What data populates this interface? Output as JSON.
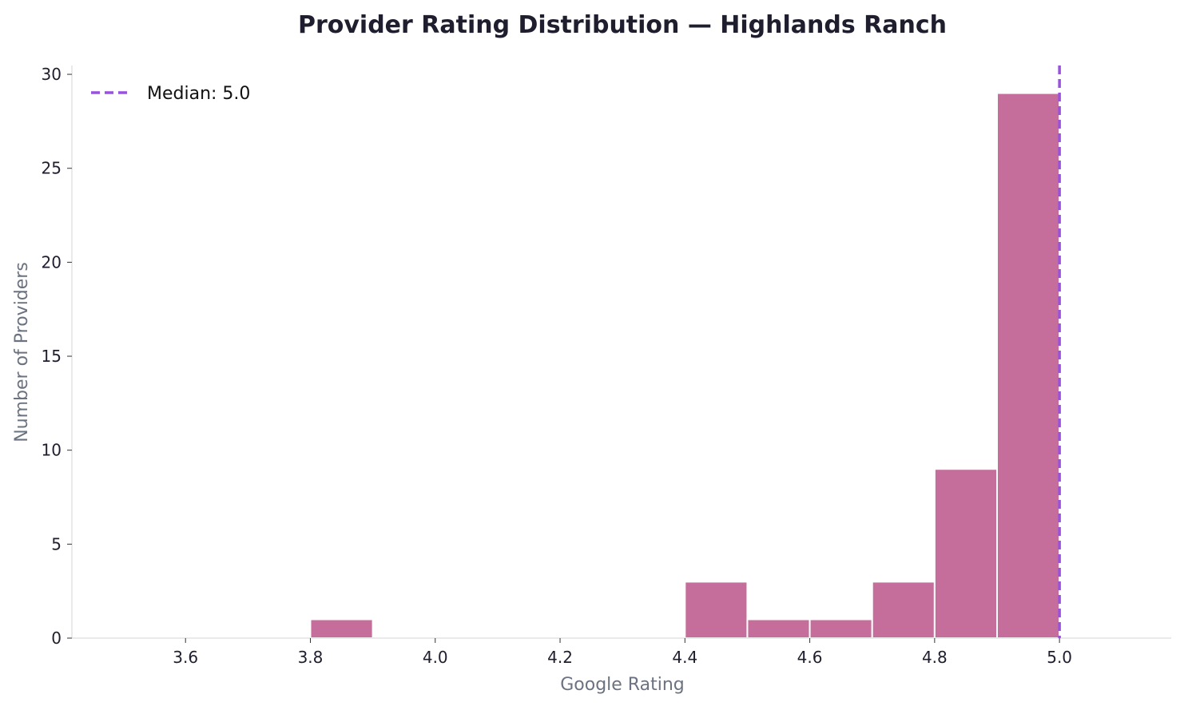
{
  "chart_data": {
    "type": "bar",
    "title": "Provider Rating Distribution — Highlands Ranch",
    "xlabel": "Google Rating",
    "ylabel": "Number of Providers",
    "xlim": [
      3.418,
      5.179
    ],
    "ylim": [
      0,
      30.47
    ],
    "xticks": [
      3.6,
      3.8,
      4.0,
      4.2,
      4.4,
      4.6,
      4.8,
      5.0
    ],
    "xtick_labels": [
      "3.6",
      "3.8",
      "4.0",
      "4.2",
      "4.4",
      "4.6",
      "4.8",
      "5.0"
    ],
    "yticks": [
      0,
      5,
      10,
      15,
      20,
      25,
      30
    ],
    "ytick_labels": [
      "0",
      "5",
      "10",
      "15",
      "20",
      "25",
      "30"
    ],
    "bins": [
      {
        "start": 3.8,
        "end": 3.9,
        "count": 1
      },
      {
        "start": 4.4,
        "end": 4.5,
        "count": 3
      },
      {
        "start": 4.5,
        "end": 4.6,
        "count": 1
      },
      {
        "start": 4.6,
        "end": 4.7,
        "count": 1
      },
      {
        "start": 4.7,
        "end": 4.8,
        "count": 3
      },
      {
        "start": 4.8,
        "end": 4.9,
        "count": 9
      },
      {
        "start": 4.9,
        "end": 5.0,
        "count": 29
      }
    ],
    "median": 5.0,
    "legend": {
      "label": "Median: 5.0",
      "placement": "top-left"
    },
    "grid": false,
    "colors": {
      "bar": "#c56d9b",
      "median": "#9b51e0",
      "title": "#1e1e2e",
      "axis_label": "#6b7280",
      "spine": "#dddddd"
    }
  }
}
